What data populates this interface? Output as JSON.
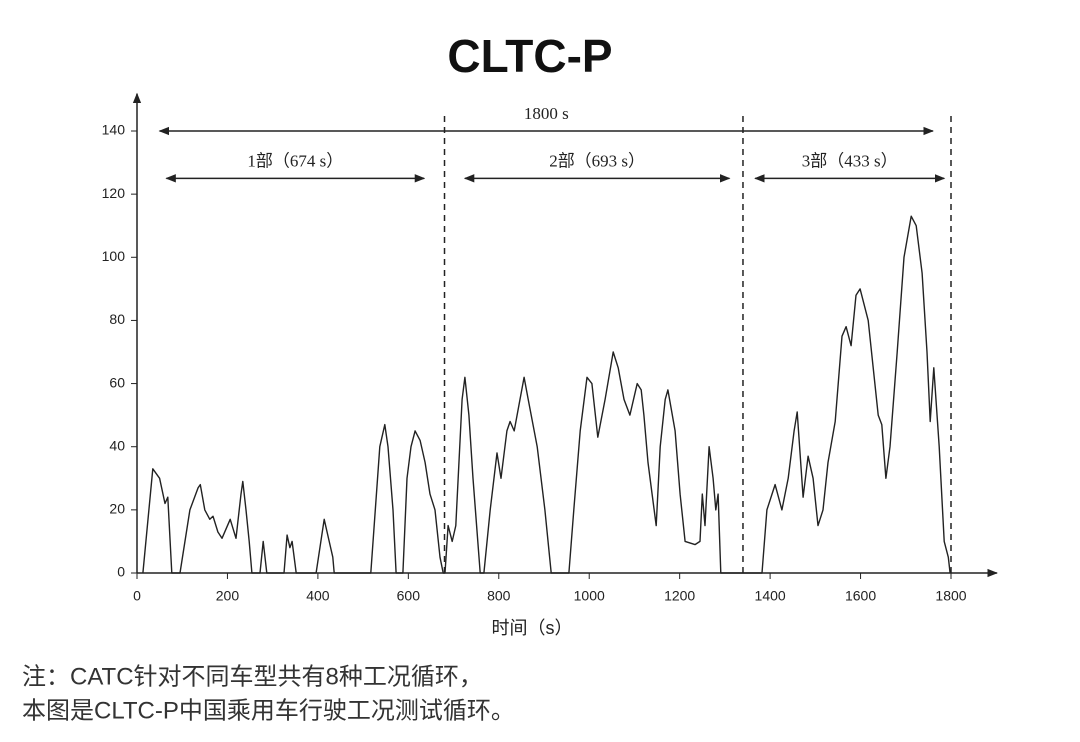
{
  "chart_data": {
    "type": "line",
    "title": "CLTC-P",
    "x_label": "时间（s）",
    "color": "#222222",
    "xlim": [
      0,
      1875
    ],
    "ylim": [
      0,
      148
    ],
    "xticks": [
      0,
      200,
      400,
      600,
      800,
      1000,
      1200,
      1400,
      1600,
      1800
    ],
    "yticks": [
      0,
      20,
      40,
      60,
      80,
      100,
      120,
      140
    ],
    "x": [
      13,
      35,
      50,
      62,
      68,
      77,
      95,
      117,
      135,
      140,
      150,
      161,
      168,
      179,
      188,
      197,
      206,
      219,
      230,
      234,
      241,
      248,
      254,
      272,
      279,
      287,
      325,
      332,
      338,
      343,
      352,
      396,
      414,
      425,
      433,
      436,
      517,
      537,
      548,
      555,
      566,
      573,
      588,
      597,
      606,
      615,
      626,
      637,
      648,
      659,
      670,
      677,
      681,
      688,
      697,
      705,
      719,
      725,
      734,
      743,
      759,
      767,
      781,
      796,
      805,
      818,
      825,
      834,
      847,
      856,
      865,
      885,
      902,
      916,
      955,
      966,
      980,
      995,
      1006,
      1019,
      1035,
      1053,
      1064,
      1077,
      1090,
      1106,
      1115,
      1121,
      1130,
      1139,
      1148,
      1157,
      1168,
      1174,
      1190,
      1201,
      1212,
      1234,
      1245,
      1250,
      1256,
      1265,
      1274,
      1280,
      1285,
      1291,
      1382,
      1393,
      1411,
      1426,
      1440,
      1453,
      1460,
      1473,
      1484,
      1495,
      1506,
      1517,
      1528,
      1544,
      1559,
      1568,
      1579,
      1590,
      1599,
      1617,
      1628,
      1639,
      1647,
      1656,
      1665,
      1681,
      1696,
      1712,
      1723,
      1736,
      1747,
      1754,
      1762,
      1774,
      1785,
      1794,
      1798
    ],
    "values": [
      0,
      33,
      30,
      22,
      24,
      0,
      0,
      20,
      27,
      28,
      20,
      17,
      18,
      13,
      11,
      14,
      17,
      11,
      25,
      29,
      20,
      10,
      0,
      0,
      10,
      0,
      0,
      12,
      8,
      10,
      0,
      0,
      17,
      10,
      5,
      0,
      0,
      40,
      47,
      40,
      20,
      0,
      0,
      30,
      40,
      45,
      42,
      35,
      25,
      20,
      5,
      0,
      0,
      15,
      10,
      15,
      55,
      62,
      50,
      30,
      0,
      0,
      20,
      38,
      30,
      45,
      48,
      45,
      55,
      62,
      55,
      40,
      20,
      0,
      0,
      20,
      45,
      62,
      60,
      43,
      55,
      70,
      65,
      55,
      50,
      60,
      58,
      50,
      35,
      25,
      15,
      40,
      55,
      58,
      45,
      25,
      10,
      9,
      10,
      25,
      15,
      40,
      30,
      20,
      25,
      0,
      0,
      20,
      28,
      20,
      30,
      45,
      51,
      24,
      37,
      30,
      15,
      20,
      35,
      48,
      75,
      78,
      72,
      88,
      90,
      80,
      65,
      50,
      47,
      30,
      40,
      70,
      100,
      113,
      110,
      95,
      70,
      48,
      65,
      40,
      10,
      5,
      0
    ],
    "spans": [
      {
        "label": "1800 s",
        "start": 50,
        "end": 1760,
        "y": 140
      },
      {
        "label": "1部（674 s）",
        "start": 65,
        "end": 635,
        "y": 125
      },
      {
        "label": "2部（693 s）",
        "start": 725,
        "end": 1310,
        "y": 125
      },
      {
        "label": "3部（433 s）",
        "start": 1367,
        "end": 1785,
        "y": 125
      }
    ],
    "dividers": [
      680,
      1340,
      1800
    ]
  },
  "note": [
    "注：CATC针对不同车型共有8种工况循环，",
    "本图是CLTC-P中国乘用车行驶工况测试循环。"
  ]
}
